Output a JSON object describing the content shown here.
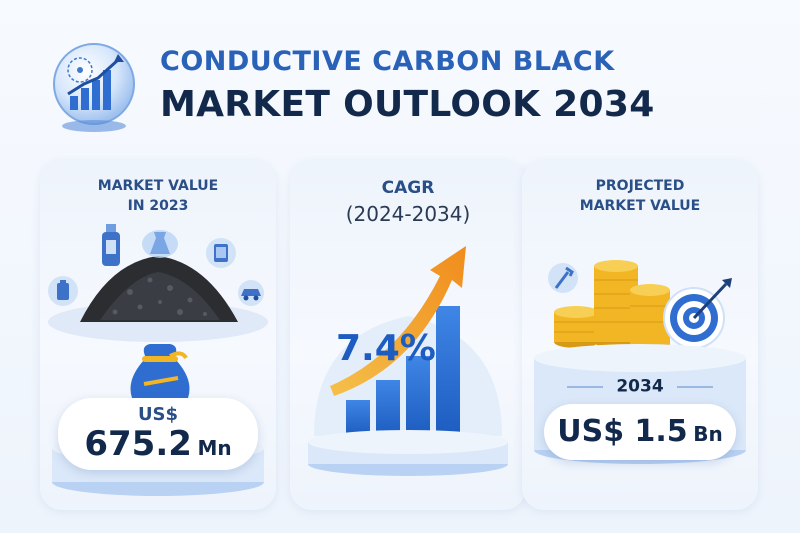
{
  "header": {
    "title_line1": "CONDUCTIVE CARBON BLACK",
    "title_line2": "MARKET OUTLOOK 2034"
  },
  "market_value": {
    "label_line1": "MARKET VALUE",
    "label_line2": "IN 2023",
    "currency": "US$",
    "amount": "675.2",
    "unit": "Mn"
  },
  "cagr": {
    "label_line1": "CAGR",
    "label_line2": "(2024-2034)",
    "value": "7.4%"
  },
  "projected": {
    "label_line1": "PROJECTED",
    "label_line2": "MARKET VALUE",
    "year": "2034",
    "amount": "US$ 1.5",
    "unit": "Bn"
  },
  "colors": {
    "accent_blue": "#2a62b8",
    "navy": "#13294b",
    "arrow_orange": "#f5a623",
    "gold": "#f2b524"
  },
  "icons": [
    "chart-globe-icon",
    "bottle-icon",
    "flask-icon",
    "tablet-icon",
    "battery-icon",
    "car-icon",
    "money-bag-icon",
    "bar-chart-arrow-icon",
    "coin-stack-icon",
    "target-icon",
    "wrench-icon"
  ]
}
